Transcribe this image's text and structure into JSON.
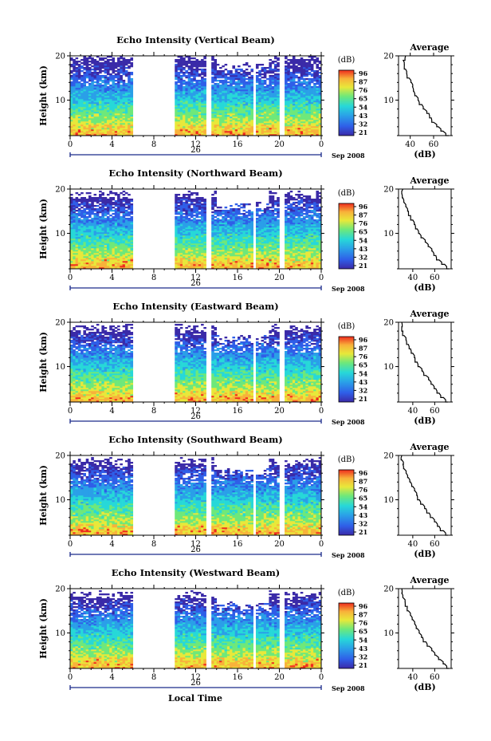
{
  "chart_data": [
    {
      "type": "heatmap",
      "title": "Echo Intensity (Vertical Beam)",
      "ylabel": "Height (km)",
      "ylim": [
        2,
        20
      ],
      "y_ticks": [
        "20",
        "10"
      ],
      "x_ticks": [
        "0",
        "4",
        "8",
        "12",
        "16",
        "20",
        "0"
      ],
      "xlim": [
        0,
        24
      ],
      "date_day": "26",
      "date_label": "Sep 2008",
      "data_gaps_hours": [
        [
          5.9,
          10.0
        ],
        [
          13.1,
          13.6
        ],
        [
          17.4,
          17.7
        ],
        [
          20.1,
          20.4
        ]
      ],
      "colorbar": {
        "unit": "(dB)",
        "ticks": [
          "96",
          "87",
          "76",
          "65",
          "54",
          "43",
          "32",
          "21"
        ]
      },
      "profile": {
        "title": "Average",
        "xlabel": "(dB)",
        "x_ticks": [
          "40",
          "60"
        ],
        "y_ticks": [
          "20",
          "10"
        ],
        "xlim": [
          30,
          75
        ],
        "ylim": [
          2,
          20
        ],
        "height_km": [
          2,
          3,
          4,
          5,
          6,
          7,
          8,
          9,
          10,
          11,
          12,
          13,
          14,
          15,
          16,
          17,
          18,
          19,
          20
        ],
        "avg_db": [
          73,
          68,
          64,
          60,
          58,
          56,
          52,
          50,
          47,
          45,
          43,
          42,
          41,
          39,
          37,
          36,
          35,
          34,
          36
        ]
      }
    },
    {
      "type": "heatmap",
      "title": "Echo Intensity (Northward Beam)",
      "ylabel": "Height (km)",
      "ylim": [
        2,
        20
      ],
      "y_ticks": [
        "20",
        "10"
      ],
      "x_ticks": [
        "0",
        "4",
        "8",
        "12",
        "16",
        "20",
        "0"
      ],
      "xlim": [
        0,
        24
      ],
      "date_day": "26",
      "date_label": "Sep 2008",
      "data_gaps_hours": [
        [
          5.9,
          10.0
        ],
        [
          13.1,
          13.6
        ],
        [
          17.4,
          17.7
        ],
        [
          20.1,
          20.4
        ]
      ],
      "colorbar": {
        "unit": "(dB)",
        "ticks": [
          "96",
          "87",
          "76",
          "65",
          "54",
          "43",
          "32",
          "21"
        ]
      },
      "profile": {
        "title": "Average",
        "xlabel": "(dB)",
        "x_ticks": [
          "40",
          "60"
        ],
        "y_ticks": [
          "20",
          "10"
        ],
        "xlim": [
          27,
          75
        ],
        "ylim": [
          2,
          20
        ],
        "height_km": [
          2,
          3,
          4,
          5,
          6,
          7,
          8,
          9,
          10,
          11,
          12,
          13,
          14,
          15,
          16,
          17,
          18,
          19,
          20
        ],
        "avg_db": [
          73,
          69,
          64,
          61,
          58,
          55,
          52,
          49,
          46,
          44,
          42,
          40,
          38,
          36,
          34,
          32,
          31,
          30,
          31
        ]
      }
    },
    {
      "type": "heatmap",
      "title": "Echo Intensity (Eastward Beam)",
      "ylabel": "Height (km)",
      "ylim": [
        2,
        20
      ],
      "y_ticks": [
        "20",
        "10"
      ],
      "x_ticks": [
        "0",
        "4",
        "8",
        "12",
        "16",
        "20",
        "0"
      ],
      "xlim": [
        0,
        24
      ],
      "date_day": "26",
      "date_label": "Sep 2008",
      "data_gaps_hours": [
        [
          5.9,
          10.0
        ],
        [
          13.1,
          13.6
        ],
        [
          17.4,
          17.7
        ],
        [
          20.1,
          20.4
        ]
      ],
      "colorbar": {
        "unit": "(dB)",
        "ticks": [
          "96",
          "87",
          "76",
          "65",
          "54",
          "43",
          "32",
          "21"
        ]
      },
      "profile": {
        "title": "Average",
        "xlabel": "(dB)",
        "x_ticks": [
          "40",
          "60"
        ],
        "y_ticks": [
          "20",
          "10"
        ],
        "xlim": [
          27,
          75
        ],
        "ylim": [
          2,
          20
        ],
        "height_km": [
          2,
          3,
          4,
          5,
          6,
          7,
          8,
          9,
          10,
          11,
          12,
          13,
          14,
          15,
          16,
          17,
          18,
          19,
          20
        ],
        "avg_db": [
          72,
          68,
          64,
          61,
          58,
          55,
          52,
          49,
          46,
          44,
          42,
          40,
          38,
          36,
          34,
          32,
          31,
          30,
          30
        ]
      }
    },
    {
      "type": "heatmap",
      "title": "Echo Intensity (Southward Beam)",
      "ylabel": "Height (km)",
      "ylim": [
        2,
        20
      ],
      "y_ticks": [
        "20",
        "10"
      ],
      "x_ticks": [
        "0",
        "4",
        "8",
        "12",
        "16",
        "20",
        "0"
      ],
      "xlim": [
        0,
        24
      ],
      "date_day": "26",
      "date_label": "Sep 2008",
      "data_gaps_hours": [
        [
          5.9,
          10.0
        ],
        [
          13.1,
          13.6
        ],
        [
          17.4,
          17.7
        ],
        [
          20.1,
          20.4
        ]
      ],
      "colorbar": {
        "unit": "(dB)",
        "ticks": [
          "96",
          "87",
          "76",
          "65",
          "54",
          "43",
          "32",
          "21"
        ]
      },
      "profile": {
        "title": "Average",
        "xlabel": "(dB)",
        "x_ticks": [
          "40",
          "60"
        ],
        "y_ticks": [
          "20",
          "10"
        ],
        "xlim": [
          27,
          75
        ],
        "ylim": [
          2,
          20
        ],
        "height_km": [
          2,
          3,
          4,
          5,
          6,
          7,
          8,
          9,
          10,
          11,
          12,
          13,
          14,
          15,
          16,
          17,
          18,
          19,
          20
        ],
        "avg_db": [
          72,
          68,
          64,
          61,
          58,
          55,
          52,
          49,
          46,
          44,
          42,
          40,
          38,
          36,
          34,
          32,
          31,
          30,
          30
        ]
      }
    },
    {
      "type": "heatmap",
      "title": "Echo Intensity (Westward Beam)",
      "ylabel": "Height (km)",
      "ylim": [
        2,
        20
      ],
      "y_ticks": [
        "20",
        "10"
      ],
      "x_ticks": [
        "0",
        "4",
        "8",
        "12",
        "16",
        "20",
        "0"
      ],
      "xlim": [
        0,
        24
      ],
      "date_day": "26",
      "date_label": "Sep 2008",
      "data_gaps_hours": [
        [
          5.9,
          10.0
        ],
        [
          13.1,
          13.6
        ],
        [
          17.4,
          17.7
        ],
        [
          20.1,
          20.4
        ]
      ],
      "colorbar": {
        "unit": "(dB)",
        "ticks": [
          "96",
          "87",
          "76",
          "65",
          "54",
          "43",
          "32",
          "21"
        ]
      },
      "profile": {
        "title": "Average",
        "xlabel": "(dB)",
        "x_ticks": [
          "40",
          "60"
        ],
        "y_ticks": [
          "20",
          "10"
        ],
        "xlim": [
          27,
          75
        ],
        "ylim": [
          2,
          20
        ],
        "height_km": [
          2,
          3,
          4,
          5,
          6,
          7,
          8,
          9,
          10,
          11,
          12,
          13,
          14,
          15,
          16,
          17,
          18,
          19,
          20
        ],
        "avg_db": [
          73,
          69,
          65,
          61,
          58,
          55,
          52,
          49,
          46,
          44,
          42,
          40,
          38,
          36,
          35,
          33,
          31,
          30,
          30
        ]
      }
    }
  ],
  "colorscale": [
    "#3a2aa8",
    "#2f5ee8",
    "#2a9fe8",
    "#27d8d8",
    "#6ee87a",
    "#e8e83a",
    "#f8b23a",
    "#ee2b1e"
  ],
  "footer": {
    "xlabel": "Local Time"
  }
}
